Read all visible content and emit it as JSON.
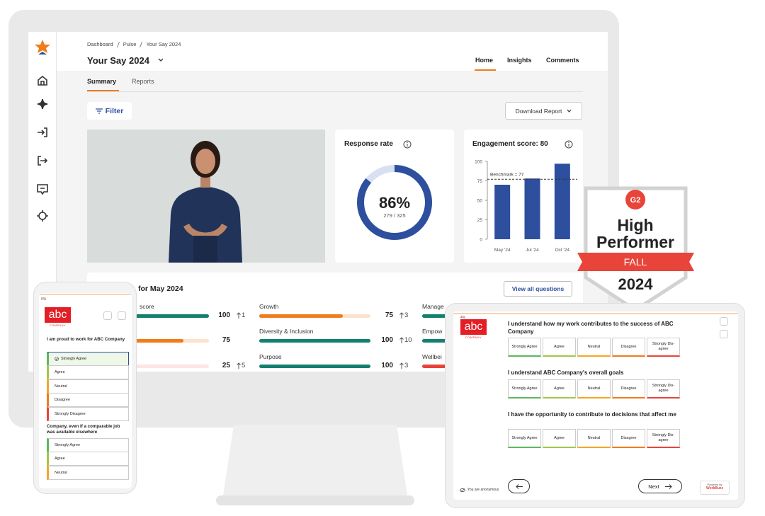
{
  "breadcrumb": [
    "Dashboard",
    "Pulse",
    "Your Say 2024"
  ],
  "title": "Your Say 2024",
  "nav": [
    "Home",
    "Insights",
    "Comments"
  ],
  "tabs": [
    "Summary",
    "Reports"
  ],
  "filter": "Filter",
  "download": "Download Report",
  "response": {
    "title": "Response rate",
    "value": 86,
    "value_label": "86%",
    "detail": "279 / 325"
  },
  "engagement": {
    "title": "Engagement score: 80",
    "chart": {
      "type": "bar",
      "categories": [
        "May '24",
        "Jul '24",
        "Oct '24"
      ],
      "values": [
        70,
        78,
        97
      ],
      "color": "#2d4f9e",
      "ylim": [
        0,
        100
      ],
      "yticks": [
        0,
        25,
        50,
        75,
        100
      ],
      "benchmark": 77,
      "benchmark_label": "Benchmark = 77"
    }
  },
  "scores": {
    "title": "for May 2024",
    "action": "View all questions",
    "columns": [
      [
        {
          "name": "score",
          "value": 100,
          "change": 1,
          "color": "#13806f"
        },
        {
          "value": 75,
          "color": "#f07c1b"
        },
        {
          "value": 25,
          "change": 5,
          "color": "#f58a8a"
        }
      ],
      [
        {
          "name": "Growth",
          "value": 75,
          "change": 3,
          "color": "#f07c1b"
        },
        {
          "name": "Diversity & Inclusion",
          "value": 100,
          "change": 10,
          "color": "#13806f"
        },
        {
          "name": "Purpose",
          "value": 100,
          "change": 3,
          "color": "#13806f"
        }
      ],
      [
        {
          "name": "Manage",
          "color": "#13806f"
        },
        {
          "name": "Empow",
          "color": "#13806f"
        },
        {
          "name": "Wellbei",
          "color": "#e8443a"
        }
      ]
    ]
  },
  "badge": {
    "brand": "G2",
    "line1": "High",
    "line2": "Performer",
    "season": "FALL",
    "year": "2024"
  },
  "phone": {
    "progress": "0%",
    "logo": "abc",
    "logo_sub": "COMPANY",
    "questions": [
      {
        "text": "I am proud to work for ABC Company",
        "options": [
          "Strongly Agree",
          "Agree",
          "Neutral",
          "Disagree",
          "Strongly Disagree"
        ]
      },
      {
        "text": "Company, even if a comparable job was available elsewhere",
        "options": [
          "Strongly Agree",
          "Agree",
          "Neutral"
        ]
      }
    ]
  },
  "tablet": {
    "progress": "4%",
    "logo": "abc",
    "logo_sub": "COMPANY",
    "questions": [
      "I understand how my work contributes to the success of ABC Company",
      "I understand ABC Company's overall goals",
      "I have the opportunity to contribute to decisions that affect me"
    ],
    "options": [
      "Strongly Agree",
      "Agree",
      "Neutral",
      "Disagree",
      "Strongly Dis-agree"
    ],
    "anonymous": "You are anonymous",
    "next": "Next",
    "powered": "Powered by",
    "brand": "WorkBuzz"
  }
}
